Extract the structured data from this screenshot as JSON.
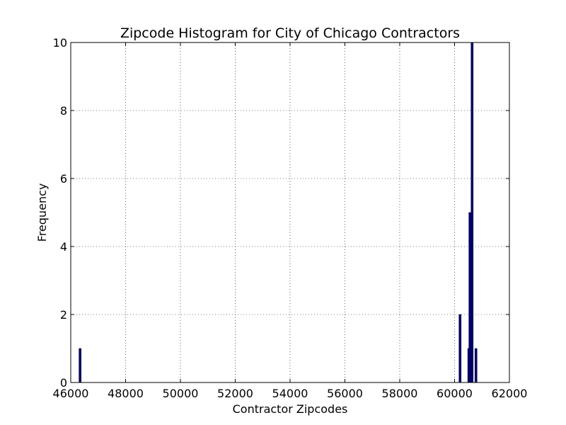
{
  "chart_data": {
    "type": "bar",
    "title": "Zipcode Histogram for City of Chicago Contractors",
    "xlabel": "Contractor Zipcodes",
    "ylabel": "Frequency",
    "xlim": [
      46000,
      62000
    ],
    "ylim": [
      0,
      10
    ],
    "x_ticks": [
      "46000",
      "48000",
      "50000",
      "52000",
      "54000",
      "56000",
      "58000",
      "60000",
      "62000"
    ],
    "y_ticks": [
      "0",
      "2",
      "4",
      "6",
      "8",
      "10"
    ],
    "grid": true,
    "bin_width": 80,
    "bins": [
      {
        "start": 46300,
        "count": 1
      },
      {
        "start": 60160,
        "count": 2
      },
      {
        "start": 60480,
        "count": 1
      },
      {
        "start": 60520,
        "count": 5
      },
      {
        "start": 60600,
        "count": 10
      },
      {
        "start": 60740,
        "count": 1
      }
    ],
    "bar_color": "#000080"
  }
}
